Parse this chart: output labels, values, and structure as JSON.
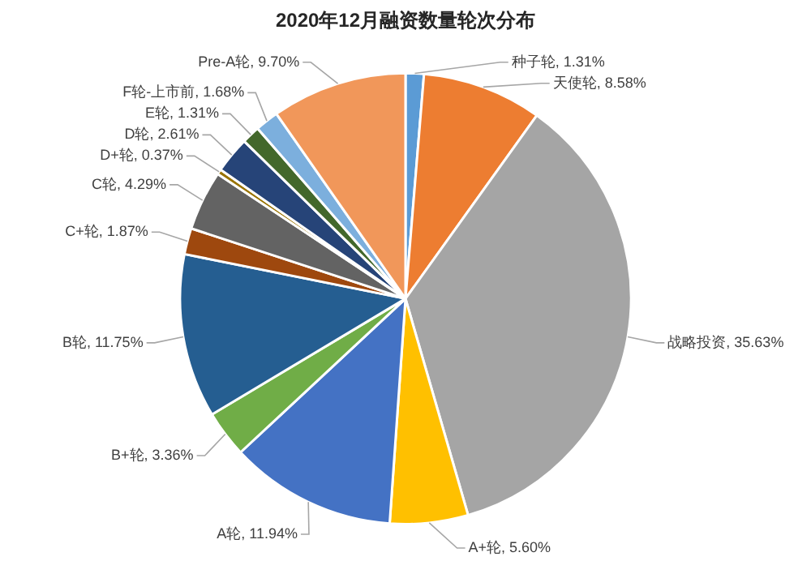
{
  "chart_data": {
    "type": "pie",
    "title": "2020年12月融资数量轮次分布",
    "categories": [
      "种子轮",
      "天使轮",
      "战略投资",
      "A+轮",
      "A轮",
      "B+轮",
      "B轮",
      "C+轮",
      "C轮",
      "D+轮",
      "D轮",
      "E轮",
      "F轮-上市前",
      "Pre-A轮"
    ],
    "values": [
      1.31,
      8.58,
      35.63,
      5.6,
      11.94,
      3.36,
      11.75,
      1.87,
      4.29,
      0.37,
      2.61,
      1.31,
      1.68,
      9.7
    ],
    "value_labels": [
      "1.31%",
      "8.58%",
      "35.63%",
      "5.60%",
      "11.94%",
      "3.36%",
      "11.75%",
      "1.87%",
      "4.29%",
      "0.37%",
      "2.61%",
      "1.31%",
      "1.68%",
      "9.70%"
    ],
    "colors": [
      "#5b9bd5",
      "#ed7d31",
      "#a5a5a5",
      "#ffc000",
      "#4472c4",
      "#70ad47",
      "#255e91",
      "#9e480e",
      "#636363",
      "#997300",
      "#264478",
      "#43682b",
      "#7cafdd",
      "#f1975a"
    ],
    "legend": false
  }
}
